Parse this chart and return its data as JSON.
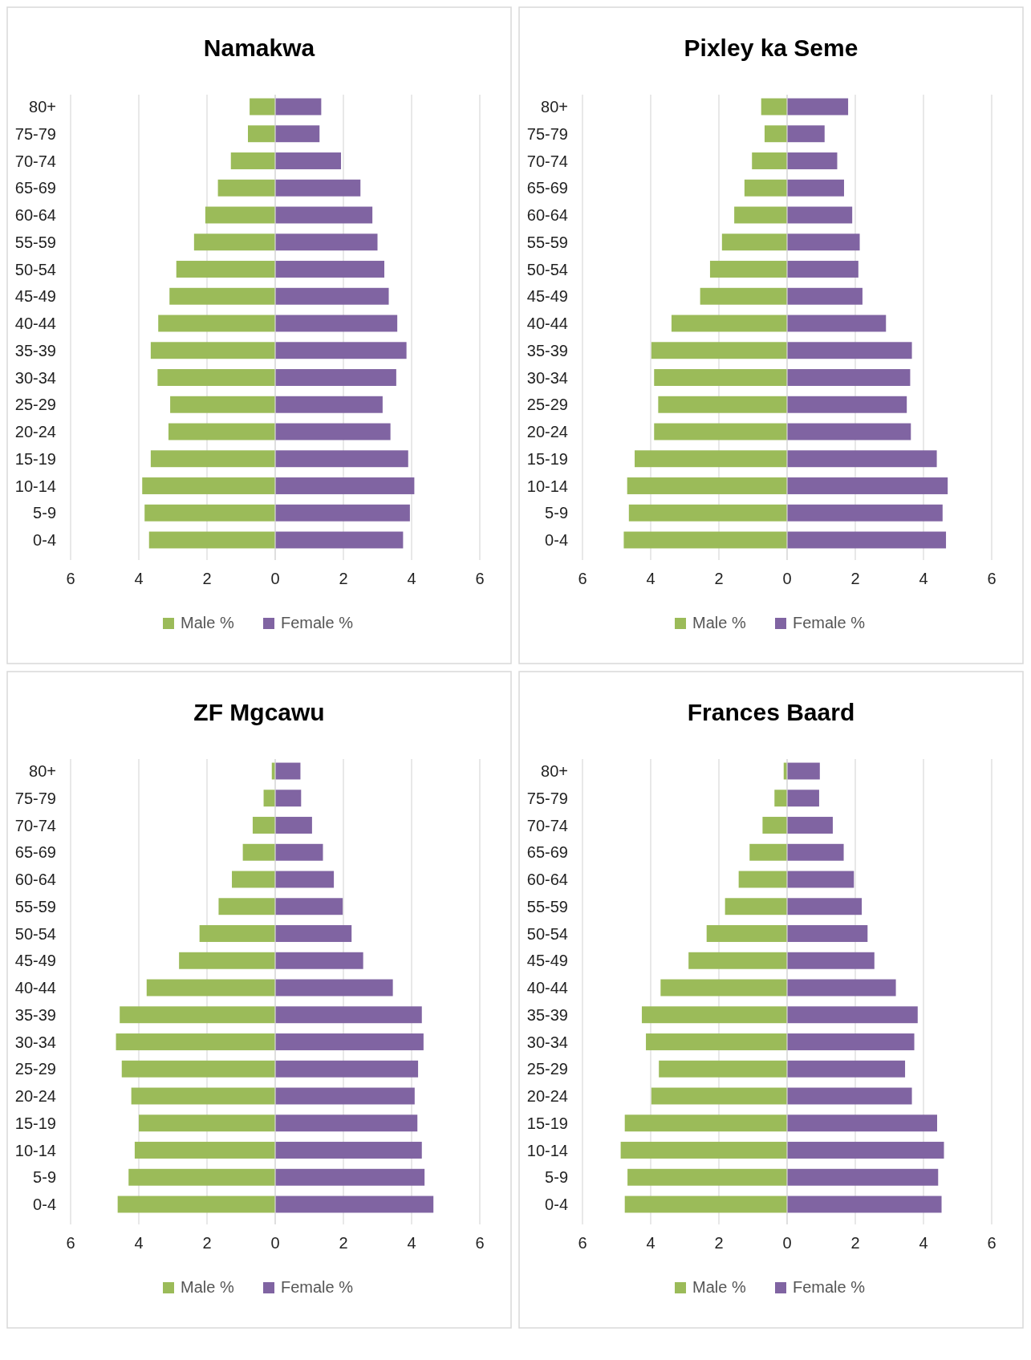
{
  "chart_data": [
    {
      "type": "bar",
      "orientation": "horizontal",
      "stacked": true,
      "title": "Namakwa",
      "categories": [
        "80+",
        "75-79",
        "70-74",
        "65-69",
        "60-64",
        "55-59",
        "50-54",
        "45-49",
        "40-44",
        "35-39",
        "30-34",
        "25-29",
        "20-24",
        "15-19",
        "10-14",
        "5-9",
        "0-4"
      ],
      "series": [
        {
          "name": "Male %",
          "color": "#9bbb59",
          "values": [
            -0.75,
            -0.8,
            -1.3,
            -1.68,
            -2.05,
            -2.38,
            -2.9,
            -3.1,
            -3.43,
            -3.65,
            -3.45,
            -3.08,
            -3.13,
            -3.65,
            -3.9,
            -3.83,
            -3.7
          ]
        },
        {
          "name": "Female %",
          "color": "#8064a2",
          "values": [
            1.35,
            1.3,
            1.93,
            2.5,
            2.85,
            3.0,
            3.2,
            3.33,
            3.58,
            3.85,
            3.55,
            3.15,
            3.38,
            3.9,
            4.08,
            3.95,
            3.75
          ]
        }
      ],
      "xlim": [
        -6,
        6
      ],
      "xticks": [
        {
          "value": -6,
          "label": "6"
        },
        {
          "value": -4,
          "label": "4"
        },
        {
          "value": -2,
          "label": "2"
        },
        0,
        2,
        4,
        6
      ],
      "grid": "x",
      "legend": "bottom"
    },
    {
      "type": "bar",
      "orientation": "horizontal",
      "stacked": true,
      "title": "Pixley ka Seme",
      "categories": [
        "80+",
        "75-79",
        "70-74",
        "65-69",
        "60-64",
        "55-59",
        "50-54",
        "45-49",
        "40-44",
        "35-39",
        "30-34",
        "25-29",
        "20-24",
        "15-19",
        "10-14",
        "5-9",
        "0-4"
      ],
      "series": [
        {
          "name": "Male %",
          "color": "#9bbb59",
          "values": [
            -0.76,
            -0.66,
            -1.03,
            -1.25,
            -1.55,
            -1.91,
            -2.26,
            -2.55,
            -3.39,
            -3.98,
            -3.9,
            -3.78,
            -3.9,
            -4.47,
            -4.69,
            -4.64,
            -4.79
          ]
        },
        {
          "name": "Female %",
          "color": "#8064a2",
          "values": [
            1.79,
            1.1,
            1.47,
            1.67,
            1.91,
            2.13,
            2.09,
            2.21,
            2.9,
            3.66,
            3.61,
            3.51,
            3.63,
            4.39,
            4.71,
            4.56,
            4.66
          ]
        }
      ],
      "xlim": [
        -6,
        6
      ],
      "xticks": [
        {
          "value": -6,
          "label": "6"
        },
        {
          "value": -4,
          "label": "4"
        },
        {
          "value": -2,
          "label": "2"
        },
        0,
        2,
        4,
        6
      ],
      "grid": "x",
      "legend": "bottom"
    },
    {
      "type": "bar",
      "orientation": "horizontal",
      "stacked": true,
      "title": "ZF Mgcawu",
      "categories": [
        "80+",
        "75-79",
        "70-74",
        "65-69",
        "60-64",
        "55-59",
        "50-54",
        "45-49",
        "40-44",
        "35-39",
        "30-34",
        "25-29",
        "20-24",
        "15-19",
        "10-14",
        "5-9",
        "0-4"
      ],
      "series": [
        {
          "name": "Male %",
          "color": "#9bbb59",
          "values": [
            -0.1,
            -0.34,
            -0.66,
            -0.95,
            -1.27,
            -1.66,
            -2.22,
            -2.82,
            -3.77,
            -4.56,
            -4.67,
            -4.5,
            -4.22,
            -4.0,
            -4.12,
            -4.3,
            -4.62
          ]
        },
        {
          "name": "Female %",
          "color": "#8064a2",
          "values": [
            0.74,
            0.76,
            1.08,
            1.4,
            1.72,
            1.98,
            2.24,
            2.58,
            3.45,
            4.3,
            4.35,
            4.19,
            4.09,
            4.17,
            4.3,
            4.38,
            4.64
          ]
        }
      ],
      "xlim": [
        -6,
        6
      ],
      "xticks": [
        {
          "value": -6,
          "label": "6"
        },
        {
          "value": -4,
          "label": "4"
        },
        {
          "value": -2,
          "label": "2"
        },
        0,
        2,
        4,
        6
      ],
      "grid": "x",
      "legend": "bottom"
    },
    {
      "type": "bar",
      "orientation": "horizontal",
      "stacked": true,
      "title": "Frances Baard",
      "categories": [
        "80+",
        "75-79",
        "70-74",
        "65-69",
        "60-64",
        "55-59",
        "50-54",
        "45-49",
        "40-44",
        "35-39",
        "30-34",
        "25-29",
        "20-24",
        "15-19",
        "10-14",
        "5-9",
        "0-4"
      ],
      "series": [
        {
          "name": "Male %",
          "color": "#9bbb59",
          "values": [
            -0.1,
            -0.37,
            -0.72,
            -1.1,
            -1.42,
            -1.82,
            -2.36,
            -2.89,
            -3.71,
            -4.26,
            -4.14,
            -3.76,
            -3.98,
            -4.76,
            -4.88,
            -4.68,
            -4.76
          ]
        },
        {
          "name": "Female %",
          "color": "#8064a2",
          "values": [
            0.96,
            0.94,
            1.34,
            1.66,
            1.96,
            2.19,
            2.36,
            2.56,
            3.19,
            3.83,
            3.73,
            3.46,
            3.66,
            4.4,
            4.6,
            4.43,
            4.53
          ]
        }
      ],
      "xlim": [
        -6,
        6
      ],
      "xticks": [
        {
          "value": -6,
          "label": "6"
        },
        {
          "value": -4,
          "label": "4"
        },
        {
          "value": -2,
          "label": "2"
        },
        0,
        2,
        4,
        6
      ],
      "grid": "x",
      "legend": "bottom"
    }
  ]
}
